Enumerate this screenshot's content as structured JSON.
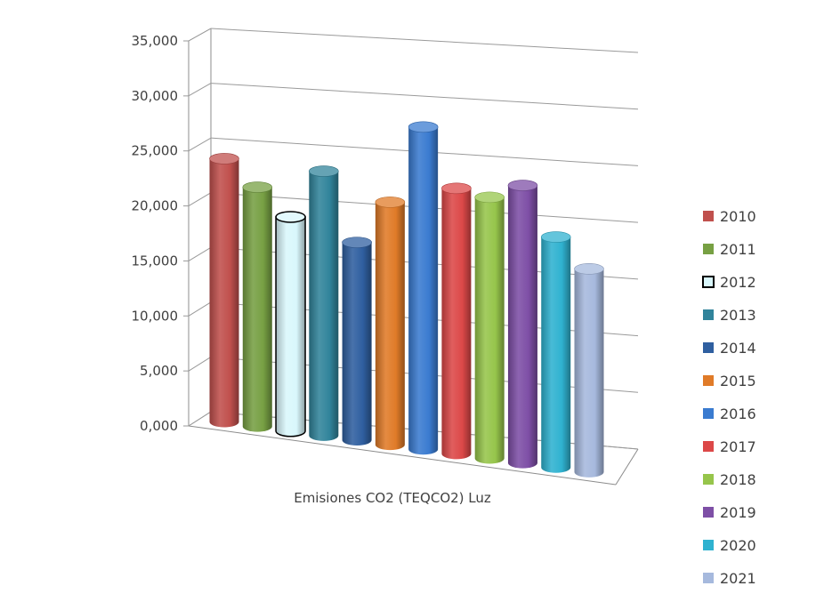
{
  "chart_data": {
    "type": "bar",
    "categories": [
      "Emisiones CO2 (TEQCO2) Luz"
    ],
    "series": [
      {
        "name": "2010",
        "values": [
          24.1
        ],
        "color": "#C0504D"
      },
      {
        "name": "2011",
        "values": [
          21.9
        ],
        "color": "#77A043"
      },
      {
        "name": "2012",
        "values": [
          19.6
        ],
        "color": "#D9F7FC"
      },
      {
        "name": "2013",
        "values": [
          24.2
        ],
        "color": "#31849B"
      },
      {
        "name": "2014",
        "values": [
          18.1
        ],
        "color": "#2F5FA0"
      },
      {
        "name": "2015",
        "values": [
          22.2
        ],
        "color": "#E07B28"
      },
      {
        "name": "2016",
        "values": [
          29.5
        ],
        "color": "#3A7BD0"
      },
      {
        "name": "2017",
        "values": [
          24.3
        ],
        "color": "#DC4848"
      },
      {
        "name": "2018",
        "values": [
          23.9
        ],
        "color": "#96C54B"
      },
      {
        "name": "2019",
        "values": [
          25.4
        ],
        "color": "#7E4FA6"
      },
      {
        "name": "2020",
        "values": [
          21.1
        ],
        "color": "#2FB2D0"
      },
      {
        "name": "2021",
        "values": [
          18.6
        ],
        "color": "#A6B9DD"
      }
    ],
    "y_ticks": [
      "0,000",
      "5,000",
      "10,000",
      "15,000",
      "20,000",
      "25,000",
      "30,000",
      "35,000"
    ],
    "ylim": [
      0,
      35
    ],
    "xlabel": "Emisiones CO2 (TEQCO2) Luz",
    "grid": true,
    "legend_position": "right"
  }
}
